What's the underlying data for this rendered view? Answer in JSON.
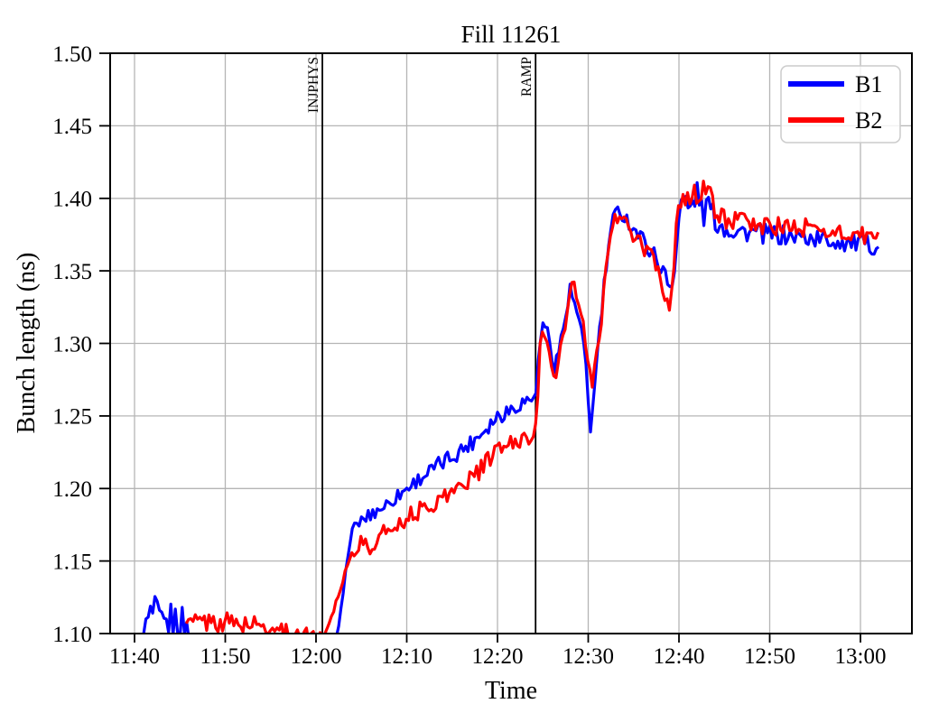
{
  "page": {
    "title": "Fill 11261"
  },
  "chart_data": {
    "type": "line",
    "title": "Fill 11261",
    "xlabel": "Time",
    "ylabel": "Bunch length (ns)",
    "x_tick_labels": [
      "11:40",
      "11:50",
      "12:00",
      "12:10",
      "12:20",
      "12:30",
      "12:40",
      "12:50",
      "13:00"
    ],
    "x_tick_minutes": [
      0,
      10,
      20,
      30,
      40,
      50,
      60,
      70,
      80
    ],
    "y_tick_labels": [
      "1.10",
      "1.15",
      "1.20",
      "1.25",
      "1.30",
      "1.35",
      "1.40",
      "1.45",
      "1.50"
    ],
    "ylim": [
      1.1,
      1.5
    ],
    "xlim_minutes_after_1140": [
      -2.7,
      85.8
    ],
    "grid": true,
    "grid_color": "#b5b5b5",
    "axis_color": "#000000",
    "sample_step_minutes": 0.25,
    "annotations": [
      {
        "label": "INJPHYS",
        "minutes_after_1140": 20.7
      },
      {
        "label": "RAMP",
        "minutes_after_1140": 44.2
      }
    ],
    "legend": {
      "position": "upper right",
      "entries": [
        {
          "label": "B1",
          "color": "#0000ff"
        },
        {
          "label": "B2",
          "color": "#ff0000"
        }
      ]
    },
    "series": [
      {
        "name": "B1",
        "color": "#0000ff",
        "anchors_time_value_noise": [
          [
            1.0,
            1.103,
            0.004
          ],
          [
            1.8,
            1.112,
            0.014
          ],
          [
            2.4,
            1.113,
            0.013
          ],
          [
            3.1,
            1.105,
            0.009
          ],
          [
            4.0,
            1.109,
            0.013
          ],
          [
            5.2,
            1.108,
            0.012
          ],
          [
            5.9,
            1.103,
            0.007
          ],
          [
            6.3,
            1.094,
            0.003
          ],
          [
            21.8,
            1.093,
            0.003
          ],
          [
            22.4,
            1.098,
            0.002
          ],
          [
            23.1,
            1.135,
            0.002
          ],
          [
            23.9,
            1.17,
            0.003
          ],
          [
            24.6,
            1.176,
            0.004
          ],
          [
            26.0,
            1.182,
            0.005
          ],
          [
            28.0,
            1.19,
            0.005
          ],
          [
            31.0,
            1.205,
            0.005
          ],
          [
            34.0,
            1.218,
            0.006
          ],
          [
            37.0,
            1.231,
            0.006
          ],
          [
            40.0,
            1.25,
            0.006
          ],
          [
            42.0,
            1.257,
            0.006
          ],
          [
            44.3,
            1.264,
            0.004
          ],
          [
            44.6,
            1.303,
            0.004
          ],
          [
            45.2,
            1.314,
            0.005
          ],
          [
            45.8,
            1.3,
            0.006
          ],
          [
            46.3,
            1.284,
            0.006
          ],
          [
            47.0,
            1.302,
            0.006
          ],
          [
            48.0,
            1.336,
            0.006
          ],
          [
            48.6,
            1.325,
            0.007
          ],
          [
            49.3,
            1.303,
            0.007
          ],
          [
            49.8,
            1.283,
            0.006
          ],
          [
            50.1,
            1.25,
            0.004
          ],
          [
            50.3,
            1.238,
            0.003
          ],
          [
            50.6,
            1.262,
            0.005
          ],
          [
            51.1,
            1.3,
            0.006
          ],
          [
            51.7,
            1.336,
            0.006
          ],
          [
            52.3,
            1.37,
            0.006
          ],
          [
            52.9,
            1.388,
            0.006
          ],
          [
            53.5,
            1.392,
            0.006
          ],
          [
            54.3,
            1.385,
            0.006
          ],
          [
            55.3,
            1.377,
            0.006
          ],
          [
            56.3,
            1.369,
            0.006
          ],
          [
            57.3,
            1.361,
            0.006
          ],
          [
            58.1,
            1.352,
            0.006
          ],
          [
            58.8,
            1.342,
            0.006
          ],
          [
            59.2,
            1.337,
            0.005
          ],
          [
            59.7,
            1.365,
            0.005
          ],
          [
            60.1,
            1.396,
            0.006
          ],
          [
            60.6,
            1.4,
            0.008
          ],
          [
            61.1,
            1.39,
            0.01
          ],
          [
            61.6,
            1.399,
            0.01
          ],
          [
            62.1,
            1.404,
            0.009
          ],
          [
            62.7,
            1.388,
            0.009
          ],
          [
            63.3,
            1.398,
            0.008
          ],
          [
            63.9,
            1.386,
            0.008
          ],
          [
            64.6,
            1.381,
            0.008
          ],
          [
            66.0,
            1.378,
            0.007
          ],
          [
            70.0,
            1.375,
            0.007
          ],
          [
            74.0,
            1.373,
            0.007
          ],
          [
            78.0,
            1.37,
            0.007
          ],
          [
            82.0,
            1.367,
            0.006
          ]
        ]
      },
      {
        "name": "B2",
        "color": "#ff0000",
        "anchors_time_value_noise": [
          [
            5.7,
            1.107,
            0.003
          ],
          [
            6.5,
            1.108,
            0.007
          ],
          [
            10.0,
            1.108,
            0.007
          ],
          [
            13.0,
            1.106,
            0.007
          ],
          [
            15.0,
            1.104,
            0.006
          ],
          [
            17.0,
            1.101,
            0.005
          ],
          [
            19.0,
            1.099,
            0.005
          ],
          [
            20.6,
            1.098,
            0.004
          ],
          [
            21.2,
            1.103,
            0.002
          ],
          [
            22.5,
            1.127,
            0.002
          ],
          [
            23.5,
            1.149,
            0.003
          ],
          [
            24.3,
            1.158,
            0.004
          ],
          [
            25.2,
            1.164,
            0.006
          ],
          [
            25.8,
            1.156,
            0.005
          ],
          [
            26.6,
            1.164,
            0.006
          ],
          [
            28.0,
            1.172,
            0.006
          ],
          [
            30.0,
            1.18,
            0.006
          ],
          [
            33.0,
            1.19,
            0.006
          ],
          [
            36.0,
            1.202,
            0.006
          ],
          [
            38.0,
            1.212,
            0.006
          ],
          [
            40.0,
            1.227,
            0.006
          ],
          [
            42.0,
            1.232,
            0.006
          ],
          [
            43.6,
            1.236,
            0.005
          ],
          [
            44.3,
            1.243,
            0.004
          ],
          [
            44.7,
            1.297,
            0.004
          ],
          [
            45.1,
            1.308,
            0.005
          ],
          [
            45.8,
            1.294,
            0.006
          ],
          [
            46.4,
            1.272,
            0.006
          ],
          [
            47.1,
            1.3,
            0.006
          ],
          [
            47.8,
            1.326,
            0.006
          ],
          [
            48.3,
            1.344,
            0.006
          ],
          [
            49.0,
            1.322,
            0.007
          ],
          [
            49.6,
            1.304,
            0.007
          ],
          [
            50.0,
            1.288,
            0.006
          ],
          [
            50.4,
            1.266,
            0.005
          ],
          [
            50.8,
            1.286,
            0.006
          ],
          [
            51.4,
            1.316,
            0.006
          ],
          [
            52.0,
            1.35,
            0.006
          ],
          [
            52.6,
            1.381,
            0.006
          ],
          [
            53.2,
            1.389,
            0.006
          ],
          [
            54.0,
            1.382,
            0.006
          ],
          [
            55.0,
            1.374,
            0.006
          ],
          [
            56.0,
            1.366,
            0.006
          ],
          [
            57.0,
            1.359,
            0.006
          ],
          [
            57.8,
            1.35,
            0.006
          ],
          [
            58.5,
            1.332,
            0.006
          ],
          [
            58.9,
            1.324,
            0.005
          ],
          [
            59.5,
            1.355,
            0.005
          ],
          [
            59.9,
            1.401,
            0.005
          ],
          [
            60.4,
            1.394,
            0.009
          ],
          [
            61.0,
            1.401,
            0.01
          ],
          [
            61.6,
            1.41,
            0.009
          ],
          [
            62.2,
            1.397,
            0.01
          ],
          [
            62.8,
            1.407,
            0.009
          ],
          [
            63.4,
            1.4,
            0.009
          ],
          [
            64.0,
            1.392,
            0.009
          ],
          [
            64.8,
            1.388,
            0.008
          ],
          [
            66.0,
            1.384,
            0.007
          ],
          [
            70.0,
            1.381,
            0.007
          ],
          [
            74.0,
            1.379,
            0.007
          ],
          [
            78.0,
            1.376,
            0.007
          ],
          [
            82.0,
            1.372,
            0.006
          ]
        ]
      }
    ]
  }
}
